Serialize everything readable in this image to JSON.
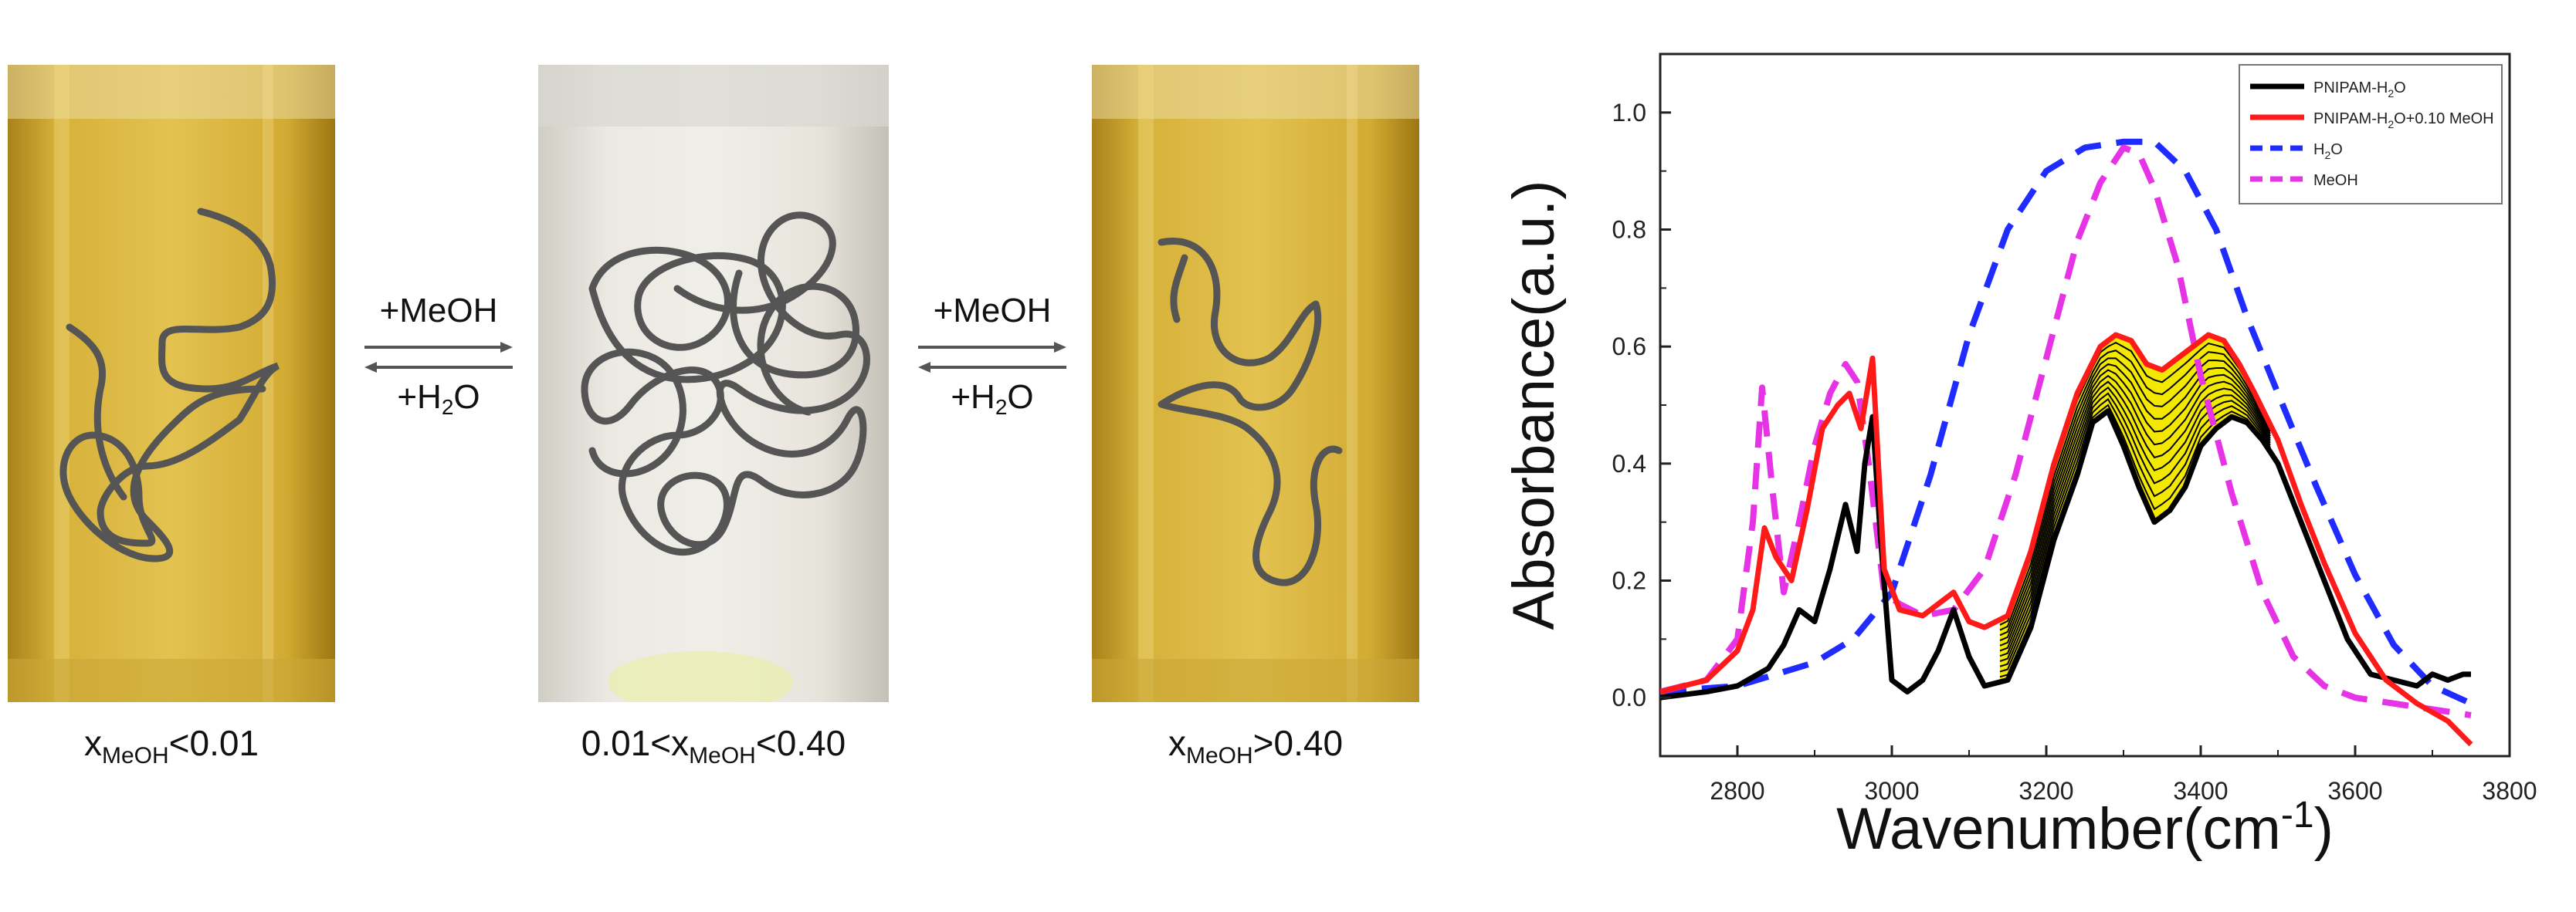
{
  "left_panel": {
    "vials": [
      {
        "caption_var": "x",
        "caption_sub": "MeOH",
        "caption_rest": "<0.01",
        "caption_prefix": "",
        "state": "clear yellow, extended chain"
      },
      {
        "caption_var": "x",
        "caption_sub": "MeOH",
        "caption_rest": "<0.40",
        "caption_prefix": "0.01<",
        "state": "turbid white, collapsed coil"
      },
      {
        "caption_var": "x",
        "caption_sub": "MeOH",
        "caption_rest": ">0.40",
        "caption_prefix": "",
        "state": "clear yellow, extended chain"
      }
    ],
    "arrows": [
      {
        "forward": "+MeOH",
        "reverse_prefix": "+H",
        "reverse_sub": "2",
        "reverse_suffix": "O"
      },
      {
        "forward": "+MeOH",
        "reverse_prefix": "+H",
        "reverse_sub": "2",
        "reverse_suffix": "O"
      }
    ],
    "colors": {
      "yellow_liquid": "#c9a227",
      "turbid": "#e6e4dc",
      "chain": "#555555",
      "arrow": "#555555"
    }
  },
  "chart_data": {
    "type": "line",
    "xlabel": "Wavenumber(cm",
    "xlabel_sup": "-1",
    "xlabel_close": ")",
    "ylabel": "Absorbance(a.u.)",
    "xlim": [
      2700,
      3800
    ],
    "ylim": [
      -0.1,
      1.1
    ],
    "xticks": [
      2800,
      3000,
      3200,
      3400,
      3600,
      3800
    ],
    "yticks": [
      0.0,
      0.2,
      0.4,
      0.6,
      0.8,
      1.0
    ],
    "ytick_labels": [
      "0.0",
      "0.2",
      "0.4",
      "0.6",
      "0.8",
      "1.0"
    ],
    "legend_position": "top-right",
    "shaded_region": {
      "between": [
        "PNIPAM-H2O",
        "PNIPAM-H2O+0.10 MeOH"
      ],
      "x_range": [
        3140,
        3490
      ],
      "fill": "#f2e800",
      "hatch": "#000000"
    },
    "series": [
      {
        "name": "PNIPAM-H",
        "name_sub": "2",
        "name_suffix": "O",
        "key": "PNIPAM-H2O",
        "color": "#000000",
        "dash": "solid",
        "x": [
          2700,
          2760,
          2800,
          2840,
          2860,
          2880,
          2900,
          2920,
          2940,
          2955,
          2965,
          2975,
          2985,
          3000,
          3020,
          3040,
          3060,
          3080,
          3100,
          3120,
          3150,
          3180,
          3210,
          3240,
          3260,
          3280,
          3300,
          3320,
          3340,
          3360,
          3380,
          3400,
          3420,
          3440,
          3460,
          3480,
          3500,
          3530,
          3560,
          3590,
          3620,
          3650,
          3680,
          3700,
          3720,
          3740,
          3750
        ],
        "y": [
          0.0,
          0.01,
          0.02,
          0.05,
          0.09,
          0.15,
          0.13,
          0.22,
          0.33,
          0.25,
          0.4,
          0.48,
          0.28,
          0.03,
          0.01,
          0.03,
          0.08,
          0.15,
          0.07,
          0.02,
          0.03,
          0.12,
          0.27,
          0.38,
          0.47,
          0.49,
          0.43,
          0.36,
          0.3,
          0.32,
          0.36,
          0.43,
          0.46,
          0.48,
          0.47,
          0.44,
          0.4,
          0.3,
          0.2,
          0.1,
          0.04,
          0.03,
          0.02,
          0.04,
          0.03,
          0.04,
          0.04
        ]
      },
      {
        "name": "PNIPAM-H",
        "name_sub": "2",
        "name_suffix": "O+0.10 MeOH",
        "key": "PNIPAM-H2O+0.10 MeOH",
        "color": "#ff1a1a",
        "dash": "solid",
        "x": [
          2700,
          2760,
          2800,
          2820,
          2835,
          2850,
          2870,
          2890,
          2910,
          2930,
          2945,
          2960,
          2975,
          2990,
          3010,
          3040,
          3060,
          3080,
          3100,
          3120,
          3150,
          3180,
          3210,
          3240,
          3270,
          3290,
          3310,
          3330,
          3350,
          3370,
          3390,
          3410,
          3430,
          3450,
          3470,
          3500,
          3530,
          3560,
          3600,
          3640,
          3680,
          3720,
          3750
        ],
        "y": [
          0.01,
          0.03,
          0.08,
          0.15,
          0.29,
          0.24,
          0.2,
          0.32,
          0.46,
          0.5,
          0.52,
          0.46,
          0.58,
          0.22,
          0.15,
          0.14,
          0.16,
          0.18,
          0.13,
          0.12,
          0.14,
          0.25,
          0.4,
          0.52,
          0.6,
          0.62,
          0.61,
          0.57,
          0.56,
          0.58,
          0.6,
          0.62,
          0.61,
          0.57,
          0.52,
          0.44,
          0.33,
          0.23,
          0.11,
          0.03,
          -0.01,
          -0.04,
          -0.08
        ]
      },
      {
        "name": "H",
        "name_sub": "2",
        "name_suffix": "O",
        "key": "H2O",
        "color": "#1f2bff",
        "dash": "dashed",
        "x": [
          2700,
          2800,
          2900,
          2950,
          3000,
          3050,
          3100,
          3150,
          3200,
          3250,
          3300,
          3340,
          3380,
          3420,
          3460,
          3500,
          3550,
          3600,
          3650,
          3700,
          3750
        ],
        "y": [
          0.01,
          0.02,
          0.06,
          0.1,
          0.18,
          0.38,
          0.62,
          0.8,
          0.9,
          0.94,
          0.95,
          0.95,
          0.9,
          0.8,
          0.65,
          0.52,
          0.36,
          0.21,
          0.09,
          0.02,
          -0.01
        ]
      },
      {
        "name": "MeOH",
        "name_sub": "",
        "name_suffix": "",
        "key": "MeOH",
        "color": "#e633e6",
        "dash": "dashed",
        "x": [
          2700,
          2760,
          2800,
          2820,
          2832,
          2845,
          2860,
          2880,
          2900,
          2920,
          2940,
          2955,
          2970,
          2990,
          3010,
          3040,
          3080,
          3120,
          3160,
          3200,
          3240,
          3270,
          3300,
          3320,
          3340,
          3370,
          3400,
          3440,
          3480,
          3520,
          3560,
          3600,
          3650,
          3700,
          3750
        ],
        "y": [
          0.01,
          0.03,
          0.1,
          0.3,
          0.53,
          0.36,
          0.18,
          0.3,
          0.43,
          0.52,
          0.57,
          0.54,
          0.4,
          0.18,
          0.16,
          0.14,
          0.15,
          0.22,
          0.38,
          0.58,
          0.78,
          0.88,
          0.94,
          0.93,
          0.87,
          0.74,
          0.55,
          0.35,
          0.18,
          0.07,
          0.02,
          0.0,
          -0.01,
          -0.02,
          -0.03
        ]
      }
    ]
  }
}
